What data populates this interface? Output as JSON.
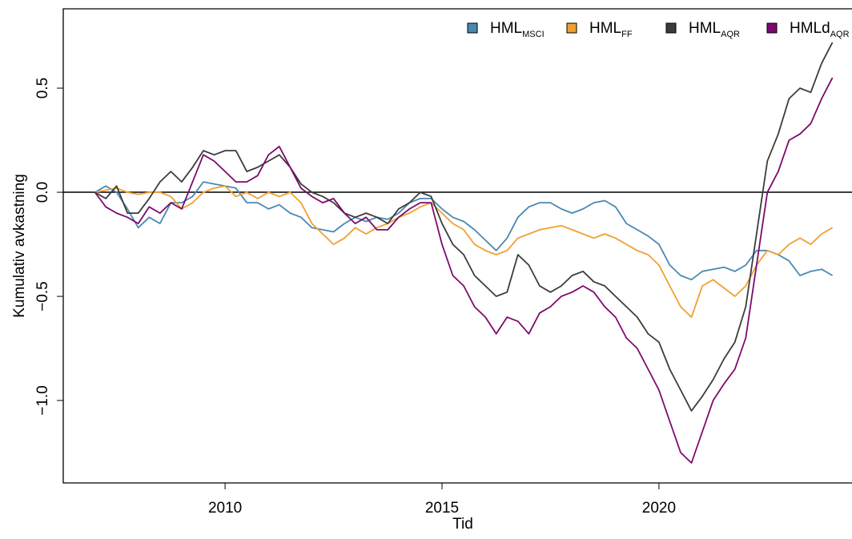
{
  "chart_data": {
    "type": "line",
    "xlabel": "Tid",
    "ylabel": "Kumulativ avkastning",
    "x": [
      2007,
      2007.25,
      2007.5,
      2007.75,
      2008,
      2008.25,
      2008.5,
      2008.75,
      2009,
      2009.25,
      2009.5,
      2009.75,
      2010,
      2010.25,
      2010.5,
      2010.75,
      2011,
      2011.25,
      2011.5,
      2011.75,
      2012,
      2012.25,
      2012.5,
      2012.75,
      2013,
      2013.25,
      2013.5,
      2013.75,
      2014,
      2014.25,
      2014.5,
      2014.75,
      2015,
      2015.25,
      2015.5,
      2015.75,
      2016,
      2016.25,
      2016.5,
      2016.75,
      2017,
      2017.25,
      2017.5,
      2017.75,
      2018,
      2018.25,
      2018.5,
      2018.75,
      2019,
      2019.25,
      2019.5,
      2019.75,
      2020,
      2020.25,
      2020.5,
      2020.75,
      2021,
      2021.25,
      2021.5,
      2021.75,
      2022,
      2022.25,
      2022.5,
      2022.75,
      2023,
      2023.25,
      2023.5,
      2023.75,
      2024
    ],
    "series": [
      {
        "name": "HML",
        "name_sub": "MSCI",
        "color": "#4a89b0",
        "values": [
          0,
          0.03,
          0,
          -0.08,
          -0.17,
          -0.12,
          -0.15,
          -0.05,
          -0.05,
          -0.02,
          0.05,
          0.04,
          0.03,
          0.02,
          -0.05,
          -0.05,
          -0.08,
          -0.06,
          -0.1,
          -0.12,
          -0.17,
          -0.18,
          -0.19,
          -0.15,
          -0.12,
          -0.14,
          -0.12,
          -0.13,
          -0.1,
          -0.05,
          -0.03,
          -0.03,
          -0.08,
          -0.12,
          -0.14,
          -0.18,
          -0.23,
          -0.28,
          -0.22,
          -0.12,
          -0.07,
          -0.05,
          -0.05,
          -0.08,
          -0.1,
          -0.08,
          -0.05,
          -0.04,
          -0.07,
          -0.15,
          -0.18,
          -0.21,
          -0.25,
          -0.35,
          -0.4,
          -0.42,
          -0.38,
          -0.37,
          -0.36,
          -0.38,
          -0.35,
          -0.28,
          -0.28,
          -0.3,
          -0.33,
          -0.4,
          -0.38,
          -0.37,
          -0.4
        ]
      },
      {
        "name": "HML",
        "name_sub": "FF",
        "color": "#f0a030",
        "values": [
          0,
          0.01,
          0.02,
          0,
          -0.01,
          0,
          0,
          -0.02,
          -0.08,
          -0.05,
          0,
          0.02,
          0.03,
          -0.02,
          0,
          -0.03,
          0,
          -0.02,
          0,
          -0.05,
          -0.15,
          -0.2,
          -0.25,
          -0.22,
          -0.17,
          -0.2,
          -0.17,
          -0.15,
          -0.12,
          -0.1,
          -0.07,
          -0.05,
          -0.1,
          -0.15,
          -0.18,
          -0.25,
          -0.28,
          -0.3,
          -0.28,
          -0.22,
          -0.2,
          -0.18,
          -0.17,
          -0.16,
          -0.18,
          -0.2,
          -0.22,
          -0.2,
          -0.22,
          -0.25,
          -0.28,
          -0.3,
          -0.35,
          -0.45,
          -0.55,
          -0.6,
          -0.45,
          -0.42,
          -0.46,
          -0.5,
          -0.45,
          -0.35,
          -0.28,
          -0.3,
          -0.25,
          -0.22,
          -0.25,
          -0.2,
          -0.17
        ]
      },
      {
        "name": "HML",
        "name_sub": "AQR",
        "color": "#3c3c3c",
        "values": [
          0,
          -0.03,
          0.03,
          -0.1,
          -0.1,
          -0.03,
          0.05,
          0.1,
          0.05,
          0.12,
          0.2,
          0.18,
          0.2,
          0.2,
          0.1,
          0.12,
          0.15,
          0.18,
          0.12,
          0.04,
          0,
          -0.02,
          -0.05,
          -0.1,
          -0.12,
          -0.1,
          -0.12,
          -0.15,
          -0.08,
          -0.05,
          0,
          -0.02,
          -0.15,
          -0.25,
          -0.3,
          -0.4,
          -0.45,
          -0.5,
          -0.48,
          -0.3,
          -0.35,
          -0.45,
          -0.48,
          -0.45,
          -0.4,
          -0.38,
          -0.43,
          -0.45,
          -0.5,
          -0.55,
          -0.6,
          -0.68,
          -0.72,
          -0.85,
          -0.95,
          -1.05,
          -0.98,
          -0.9,
          -0.8,
          -0.72,
          -0.55,
          -0.2,
          0.15,
          0.28,
          0.45,
          0.5,
          0.48,
          0.62,
          0.72
        ]
      },
      {
        "name": "HMLd",
        "name_sub": "AQR",
        "color": "#7d0a6e",
        "values": [
          0,
          -0.07,
          -0.1,
          -0.12,
          -0.15,
          -0.07,
          -0.1,
          -0.05,
          -0.08,
          0.05,
          0.18,
          0.15,
          0.1,
          0.05,
          0.05,
          0.08,
          0.18,
          0.22,
          0.12,
          0.02,
          -0.02,
          -0.05,
          -0.03,
          -0.1,
          -0.15,
          -0.12,
          -0.18,
          -0.18,
          -0.12,
          -0.08,
          -0.05,
          -0.05,
          -0.25,
          -0.4,
          -0.45,
          -0.55,
          -0.6,
          -0.68,
          -0.6,
          -0.62,
          -0.68,
          -0.58,
          -0.55,
          -0.5,
          -0.48,
          -0.45,
          -0.48,
          -0.55,
          -0.6,
          -0.7,
          -0.75,
          -0.85,
          -0.95,
          -1.1,
          -1.25,
          -1.3,
          -1.15,
          -1,
          -0.92,
          -0.85,
          -0.7,
          -0.35,
          0,
          0.1,
          0.25,
          0.28,
          0.33,
          0.45,
          0.55
        ]
      }
    ],
    "xlim": [
      2006.27,
      2024.45
    ],
    "xticks": [
      2010,
      2015,
      2020
    ],
    "ylim": [
      -1.396,
      0.881
    ],
    "yticks": [
      {
        "value": -1.0,
        "label": "−1.0"
      },
      {
        "value": -0.5,
        "label": "−0.5"
      },
      {
        "value": 0,
        "label": "0.0"
      },
      0.5
    ],
    "hline": 0,
    "grid": false,
    "legend": "top-right"
  }
}
